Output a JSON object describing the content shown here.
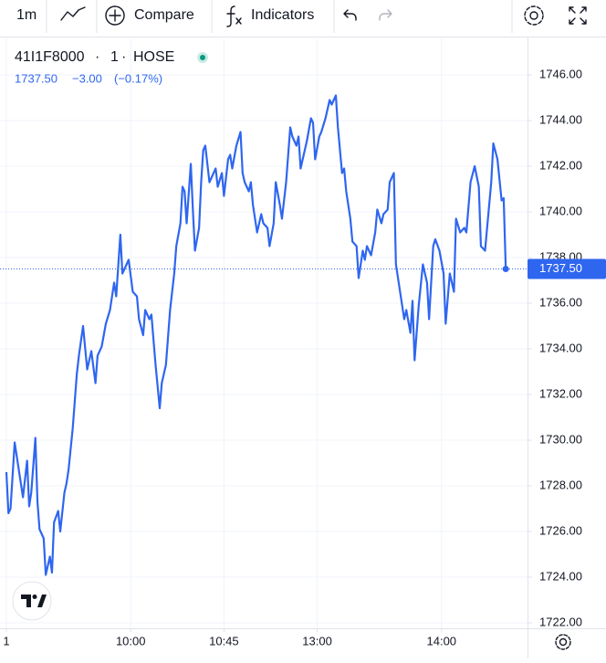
{
  "toolbar": {
    "interval": "1m",
    "compare": "Compare",
    "indicators": "Indicators"
  },
  "legend": {
    "symbol": "41I1F8000",
    "interval": "1",
    "exchange": "HOSE",
    "close": "1737.50",
    "change": "−3.00",
    "change_percent": "(−0.17%)"
  },
  "chart_data": {
    "type": "line",
    "x": [
      0,
      1,
      2,
      4,
      5,
      7,
      8,
      10,
      11,
      12,
      14,
      15,
      16,
      18,
      19,
      21,
      22,
      23,
      25,
      26,
      28,
      29,
      30,
      32,
      34,
      35,
      37,
      39,
      41,
      43,
      44,
      46,
      48,
      50,
      52,
      53,
      55,
      56,
      58,
      59,
      61,
      63,
      64,
      66,
      67,
      69,
      70,
      72,
      74,
      75,
      77,
      79,
      81,
      82,
      84,
      85,
      86,
      87,
      89,
      90,
      91,
      93,
      94,
      95,
      96,
      98,
      100,
      101,
      102,
      104,
      105,
      107,
      108,
      109,
      111,
      113,
      114,
      115,
      117,
      118,
      119,
      121,
      123,
      124,
      126,
      127,
      129,
      130,
      132,
      133,
      135,
      137,
      138,
      140,
      141,
      142,
      144,
      145,
      147,
      148,
      149,
      151,
      152,
      154,
      156,
      157,
      159,
      160,
      162,
      163,
      164,
      166,
      167,
      169,
      170,
      172,
      173,
      174,
      176,
      178,
      179,
      181,
      182,
      184,
      185,
      187,
      188,
      190,
      192,
      193,
      195,
      196,
      197,
      199,
      201,
      203,
      204,
      206,
      207,
      209,
      211,
      212,
      214,
      216,
      217,
      219,
      221,
      222,
      224,
      226,
      228,
      229,
      231,
      232,
      234,
      235,
      237,
      239,
      240,
      241
    ],
    "series": [
      {
        "name": "41I1F8000",
        "color": "#2f66f0",
        "values": [
          1728.6,
          1726.8,
          1727.0,
          1729.9,
          1729.3,
          1728.1,
          1727.5,
          1729.1,
          1727.1,
          1727.7,
          1730.1,
          1727.3,
          1726.1,
          1725.7,
          1724.1,
          1724.9,
          1724.2,
          1726.4,
          1726.9,
          1726.0,
          1727.7,
          1728.1,
          1728.7,
          1730.5,
          1732.9,
          1733.7,
          1735.0,
          1733.1,
          1733.9,
          1732.5,
          1733.7,
          1734.1,
          1735.1,
          1735.7,
          1736.9,
          1736.3,
          1739.0,
          1737.3,
          1737.7,
          1737.9,
          1736.5,
          1736.3,
          1735.3,
          1734.6,
          1735.7,
          1735.3,
          1735.5,
          1733.3,
          1731.4,
          1732.5,
          1733.3,
          1735.7,
          1737.3,
          1738.5,
          1739.5,
          1741.1,
          1740.9,
          1739.5,
          1742.1,
          1740.1,
          1738.3,
          1739.3,
          1741.3,
          1742.7,
          1742.9,
          1741.3,
          1741.7,
          1741.9,
          1741.1,
          1741.7,
          1740.7,
          1742.3,
          1742.5,
          1741.9,
          1742.9,
          1743.5,
          1741.7,
          1741.3,
          1740.9,
          1741.3,
          1740.3,
          1739.1,
          1739.9,
          1739.5,
          1739.3,
          1738.5,
          1739.5,
          1741.3,
          1740.3,
          1739.7,
          1741.3,
          1743.7,
          1743.3,
          1742.9,
          1743.3,
          1741.9,
          1742.7,
          1743.1,
          1744.1,
          1743.9,
          1742.3,
          1743.3,
          1743.5,
          1744.1,
          1744.9,
          1744.7,
          1745.1,
          1743.7,
          1741.7,
          1741.9,
          1740.9,
          1739.7,
          1738.7,
          1738.5,
          1737.1,
          1738.3,
          1737.9,
          1738.5,
          1738.1,
          1739.1,
          1740.1,
          1739.5,
          1739.9,
          1740.1,
          1741.3,
          1741.7,
          1737.7,
          1736.5,
          1735.3,
          1735.7,
          1734.7,
          1736.1,
          1733.5,
          1735.9,
          1737.7,
          1736.9,
          1735.3,
          1738.5,
          1738.8,
          1738.3,
          1737.3,
          1735.1,
          1737.3,
          1736.5,
          1739.7,
          1739.1,
          1739.3,
          1739.1,
          1741.3,
          1742.0,
          1741.1,
          1738.5,
          1738.3,
          1739.3,
          1741.3,
          1743.0,
          1742.3,
          1740.5,
          1740.6,
          1737.5
        ]
      }
    ],
    "last_value": {
      "value": 1737.5,
      "label": "1737.50"
    },
    "xlim": [
      -3.08,
      251.5
    ],
    "xticks": [
      {
        "value": 0,
        "label": "1"
      },
      {
        "value": 60,
        "label": "10:00"
      },
      {
        "value": 105,
        "label": "10:45"
      },
      {
        "value": 150,
        "label": "13:00"
      },
      {
        "value": 210,
        "label": "14:00"
      }
    ],
    "ylim": [
      1721.76,
      1747.6
    ],
    "yticks": [
      {
        "value": 1722,
        "label": "1722.00"
      },
      {
        "value": 1724,
        "label": "1724.00"
      },
      {
        "value": 1726,
        "label": "1726.00"
      },
      {
        "value": 1728,
        "label": "1728.00"
      },
      {
        "value": 1730,
        "label": "1730.00"
      },
      {
        "value": 1732,
        "label": "1732.00"
      },
      {
        "value": 1734,
        "label": "1734.00"
      },
      {
        "value": 1736,
        "label": "1736.00"
      },
      {
        "value": 1738,
        "label": "1738.00"
      },
      {
        "value": 1740,
        "label": "1740.00"
      },
      {
        "value": 1742,
        "label": "1742.00"
      },
      {
        "value": 1744,
        "label": "1744.00"
      },
      {
        "value": 1746,
        "label": "1746.00"
      }
    ],
    "grid": true
  }
}
